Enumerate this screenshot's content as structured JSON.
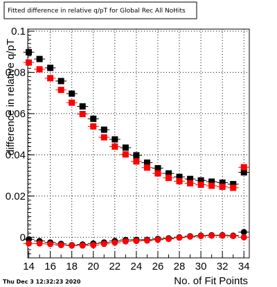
{
  "title": "Fitted difference in relative q/pT for Global Rec All NoHits",
  "timestamp": "Thu Dec  3 12:32:23 2020",
  "chart_data": {
    "type": "scatter",
    "xlabel": "No. of Fit Points",
    "ylabel": "difference in relative q/pT",
    "xlim": [
      13.9,
      34.5
    ],
    "ylim": [
      -0.01,
      0.101
    ],
    "xticks": [
      14,
      16,
      18,
      20,
      22,
      24,
      26,
      28,
      30,
      32,
      34
    ],
    "xtick_labels": [
      "14",
      "16",
      "18",
      "20",
      "22",
      "24",
      "26",
      "28",
      "30",
      "32",
      "34"
    ],
    "yticks": [
      0,
      0.02,
      0.04,
      0.06,
      0.08,
      0.1
    ],
    "ytick_labels": [
      "0",
      "0.02",
      "0.04",
      "0.06",
      "0.08",
      "0.1"
    ],
    "grid": true,
    "x": [
      14,
      15,
      16,
      17,
      18,
      19,
      20,
      21,
      22,
      23,
      24,
      25,
      26,
      27,
      28,
      29,
      30,
      31,
      32,
      33,
      34
    ],
    "series": [
      {
        "marker": "square",
        "color": "#000000",
        "values": [
          0.0898,
          0.0865,
          0.0822,
          0.0758,
          0.0697,
          0.0635,
          0.0575,
          0.0522,
          0.0475,
          0.0435,
          0.0398,
          0.0362,
          0.0335,
          0.031,
          0.0293,
          0.0283,
          0.0276,
          0.027,
          0.0265,
          0.0258,
          0.0315
        ]
      },
      {
        "marker": "square",
        "color": "#ff0000",
        "values": [
          0.0848,
          0.0815,
          0.0772,
          0.0715,
          0.0653,
          0.0598,
          0.0538,
          0.0485,
          0.044,
          0.0402,
          0.0368,
          0.0338,
          0.031,
          0.0288,
          0.0272,
          0.0262,
          0.0255,
          0.025,
          0.0245,
          0.024,
          0.034
        ]
      },
      {
        "marker": "circle",
        "color": "#000000",
        "values": [
          -0.001,
          -0.0018,
          -0.0025,
          -0.0032,
          -0.0038,
          -0.0035,
          -0.003,
          -0.0025,
          -0.0018,
          -0.0013,
          -0.0012,
          -0.0012,
          -0.0008,
          -0.0005,
          0.0,
          0.0005,
          0.0008,
          0.001,
          0.001,
          0.0008,
          0.0025
        ]
      },
      {
        "marker": "circle",
        "color": "#ff0000",
        "values": [
          -0.003,
          -0.003,
          -0.0033,
          -0.0038,
          -0.004,
          -0.004,
          -0.0038,
          -0.0032,
          -0.0026,
          -0.002,
          -0.0018,
          -0.0016,
          -0.0012,
          -0.0008,
          -0.0002,
          0.0003,
          0.0006,
          0.0008,
          0.0008,
          0.0006,
          0.0
        ]
      }
    ]
  }
}
